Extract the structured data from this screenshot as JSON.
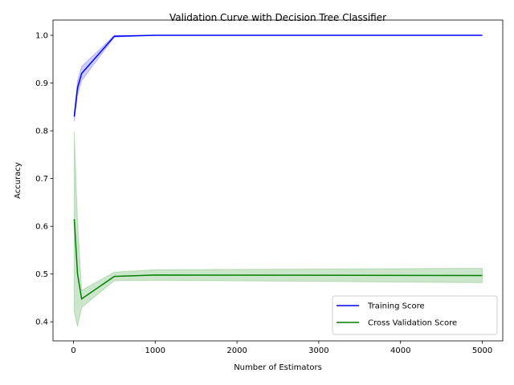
{
  "chart_data": {
    "type": "line",
    "title": "Validation Curve with Decision Tree Classifier",
    "xlabel": "Number of Estimators",
    "ylabel": "Accuracy",
    "xlim": [
      -250,
      5250
    ],
    "ylim": [
      0.36,
      1.032
    ],
    "xticks": [
      0,
      1000,
      2000,
      3000,
      4000,
      5000
    ],
    "yticks": [
      0.4,
      0.5,
      0.6,
      0.7,
      0.8,
      0.9,
      1.0
    ],
    "ytick_labels": [
      "0.4",
      "0.5",
      "0.6",
      "0.7",
      "0.8",
      "0.9",
      "1.0"
    ],
    "grid": false,
    "legend_position": "lower-right",
    "x": [
      10,
      50,
      100,
      500,
      1000,
      5000
    ],
    "series": [
      {
        "name": "Training Score",
        "color": "#0000ff",
        "band_color": "#0000ff",
        "values": [
          0.83,
          0.89,
          0.92,
          0.998,
          1.0,
          1.0
        ],
        "lower": [
          0.82,
          0.875,
          0.905,
          0.996,
          1.0,
          1.0
        ],
        "upper": [
          0.84,
          0.905,
          0.935,
          1.0,
          1.0,
          1.0
        ]
      },
      {
        "name": "Cross Validation Score",
        "color": "#008000",
        "band_color": "#008000",
        "values": [
          0.615,
          0.5,
          0.448,
          0.495,
          0.498,
          0.497
        ],
        "lower": [
          0.42,
          0.39,
          0.43,
          0.486,
          0.487,
          0.482
        ],
        "upper": [
          0.8,
          0.61,
          0.466,
          0.504,
          0.509,
          0.512
        ]
      }
    ]
  }
}
